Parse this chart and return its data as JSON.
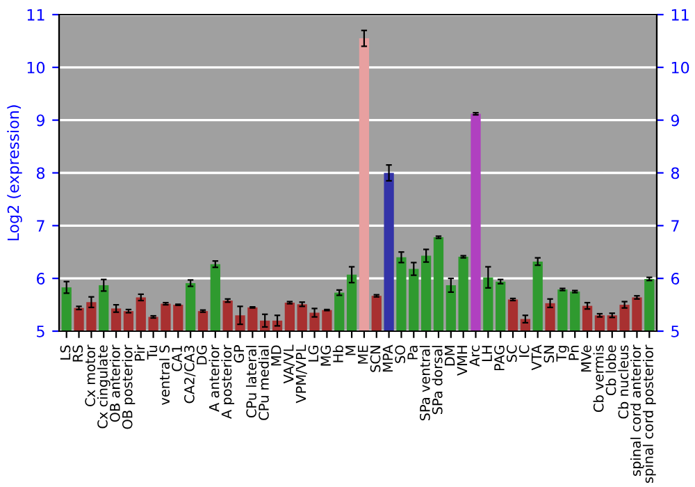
{
  "chart_data": {
    "type": "bar",
    "ylabel": "Log2 (expression)",
    "categories": [
      "LS",
      "RS",
      "Cx motor",
      "Cx cingulate",
      "OB anterior",
      "OB posterior",
      "Pir",
      "Tu",
      "ventral S",
      "CA1",
      "CA2/CA3",
      "DG",
      "A anterior",
      "A posterior",
      "GP",
      "CPu lateral",
      "CPu medial",
      "MD",
      "VA/VL",
      "VPM/VPL",
      "LG",
      "MG",
      "Hb",
      "M",
      "ME",
      "SCN",
      "MPA",
      "SO",
      "Pa",
      "SPa ventral",
      "SPa dorsal",
      "DM",
      "VMH",
      "Arc",
      "LH",
      "PAG",
      "SC",
      "IC",
      "VTA",
      "SN",
      "Tg",
      "Pn",
      "MVe",
      "Cb vermis",
      "Cb lobe",
      "Cb nucleus",
      "spinal cord anterior",
      "spinal cord posterior"
    ],
    "values": [
      5.83,
      5.44,
      5.55,
      5.87,
      5.43,
      5.38,
      5.64,
      5.27,
      5.52,
      5.5,
      5.91,
      5.38,
      6.27,
      5.58,
      5.3,
      5.45,
      5.2,
      5.2,
      5.54,
      5.51,
      5.35,
      5.4,
      5.73,
      6.07,
      10.55,
      5.67,
      8.0,
      6.4,
      6.18,
      6.43,
      6.78,
      5.87,
      6.41,
      9.12,
      6.02,
      5.94,
      5.6,
      5.23,
      6.32,
      5.53,
      5.79,
      5.75,
      5.48,
      5.3,
      5.3,
      5.5,
      5.64,
      5.99
    ],
    "errors": [
      0.11,
      0.03,
      0.1,
      0.11,
      0.07,
      0.03,
      0.06,
      0.02,
      0.02,
      0.01,
      0.06,
      0.02,
      0.06,
      0.03,
      0.17,
      0.01,
      0.12,
      0.1,
      0.02,
      0.04,
      0.08,
      0.01,
      0.05,
      0.15,
      0.15,
      0.02,
      0.15,
      0.1,
      0.12,
      0.12,
      0.02,
      0.13,
      0.02,
      0.02,
      0.2,
      0.04,
      0.02,
      0.07,
      0.07,
      0.08,
      0.02,
      0.02,
      0.06,
      0.03,
      0.04,
      0.06,
      0.03,
      0.03
    ],
    "colors": [
      "#2f9a2f",
      "#a83030",
      "#a83030",
      "#2f9a2f",
      "#a83030",
      "#a83030",
      "#a83030",
      "#a83030",
      "#a83030",
      "#a83030",
      "#2f9a2f",
      "#a83030",
      "#2f9a2f",
      "#a83030",
      "#a83030",
      "#a83030",
      "#a83030",
      "#a83030",
      "#a83030",
      "#a83030",
      "#a83030",
      "#a83030",
      "#2f9a2f",
      "#2f9a2f",
      "#e8a0a0",
      "#a83030",
      "#3333a8",
      "#2f9a2f",
      "#2f9a2f",
      "#2f9a2f",
      "#2f9a2f",
      "#2f9a2f",
      "#2f9a2f",
      "#b040c0",
      "#2f9a2f",
      "#2f9a2f",
      "#a83030",
      "#a83030",
      "#2f9a2f",
      "#a83030",
      "#2f9a2f",
      "#2f9a2f",
      "#a83030",
      "#a83030",
      "#a83030",
      "#a83030",
      "#a83030",
      "#2f9a2f"
    ],
    "ylim": [
      5,
      11
    ],
    "yticks": [
      5,
      6,
      7,
      8,
      9,
      10,
      11
    ],
    "y2lim": [
      5,
      11
    ],
    "y2ticks": [
      5,
      6,
      7,
      8,
      9,
      10,
      11
    ],
    "grid": "y"
  }
}
